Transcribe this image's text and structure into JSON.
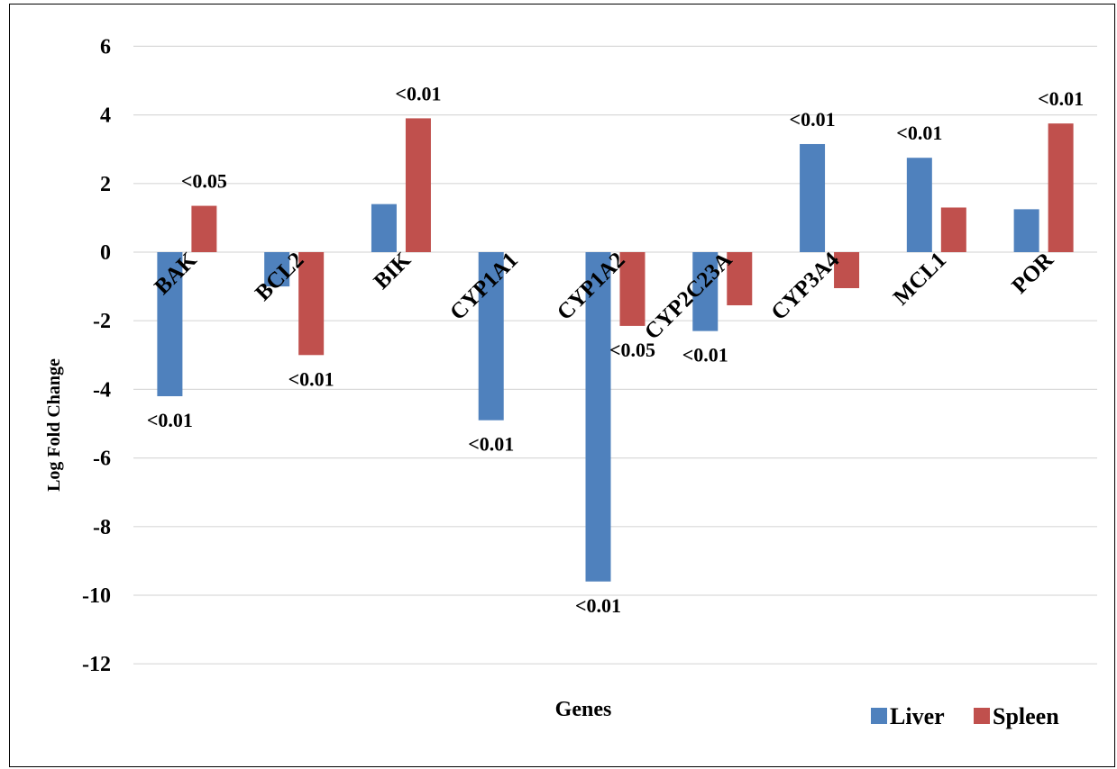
{
  "chart_data": {
    "type": "bar",
    "title": "",
    "xlabel": "Genes",
    "ylabel": "Log Fold Change",
    "ylim": [
      -12,
      6
    ],
    "yticks": [
      6,
      4,
      2,
      0,
      -2,
      -4,
      -6,
      -8,
      -10,
      -12
    ],
    "grid": true,
    "legend_position": "bottom-right",
    "categories": [
      "BAK",
      "BCL2",
      "BIK",
      "CYP1A1",
      "CYP1A2",
      "CYP2C23A",
      "CYP3A4",
      "MCL1",
      "POR"
    ],
    "series": [
      {
        "name": "Liver",
        "color": "#4F81BD",
        "values": [
          -4.2,
          -1.0,
          1.4,
          -4.9,
          -9.6,
          -2.3,
          3.15,
          2.75,
          1.25
        ],
        "labels": [
          "<0.01",
          "",
          "",
          "<0.01",
          "<0.01",
          "<0.01",
          "<0.01",
          "<0.01",
          ""
        ]
      },
      {
        "name": "Spleen",
        "color": "#C0504D",
        "values": [
          1.35,
          -3.0,
          3.9,
          null,
          -2.15,
          -1.55,
          -1.05,
          1.3,
          3.75
        ],
        "labels": [
          "<0.05",
          "<0.01",
          "<0.01",
          "",
          "<0.05",
          "",
          "",
          "",
          "<0.01"
        ]
      }
    ]
  }
}
